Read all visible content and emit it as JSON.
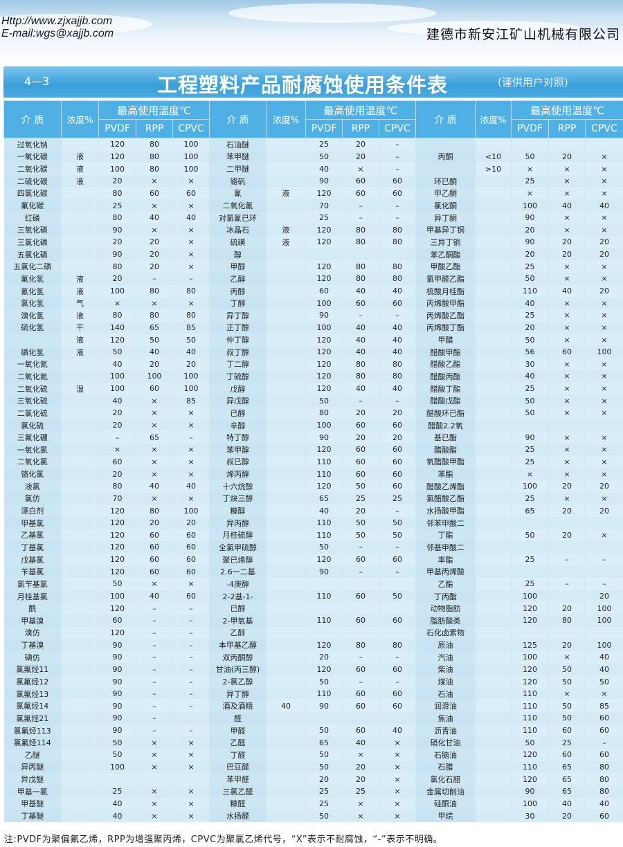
{
  "header": {
    "url": "Http://www.zjxajjb.com",
    "email": "E-mail:wgs@xajjb.com",
    "company": "建德市新安江矿山机械有限公司"
  },
  "title": {
    "number": "4—3",
    "main": "工程塑料产品耐腐蚀使用条件表",
    "sub": "(谨供用户对照)"
  },
  "columns": {
    "medium": "介 质",
    "concentration": "浓度%",
    "max_temp": "最高使用温度℃",
    "pvdf": "PVDF",
    "rpp": "RPP",
    "cpvc": "CPVC"
  },
  "rows": [
    [
      "过氧化钠",
      "",
      "120",
      "80",
      "100",
      "石油醚",
      "",
      "25",
      "20",
      "–",
      "",
      "",
      "",
      "",
      ""
    ],
    [
      "一氧化碳",
      "液",
      "120",
      "80",
      "100",
      "苯甲醚",
      "",
      "50",
      "20",
      "–",
      "丙酮",
      "<10",
      "50",
      "20",
      "×"
    ],
    [
      "二氧化碳",
      "液",
      "100",
      "80",
      "100",
      "二甲醚",
      "",
      "40",
      "×",
      "–",
      "",
      ">10",
      "×",
      "×",
      "×"
    ],
    [
      "二硫化碳",
      "液",
      "20",
      "×",
      "×",
      "铬矾",
      "",
      "90",
      "60",
      "60",
      "环已酮",
      "",
      "25",
      "×",
      "×"
    ],
    [
      "四氯化碳",
      "",
      "80",
      "60",
      "60",
      "氰",
      "液",
      "120",
      "60",
      "60",
      "甲乙酮",
      "",
      "×",
      "×",
      "×"
    ],
    [
      "氟化碳",
      "",
      "25",
      "×",
      "×",
      "二氧化氰",
      "",
      "70",
      "–",
      "–",
      "氯化酮",
      "",
      "100",
      "40",
      "40"
    ],
    [
      "红磷",
      "",
      "80",
      "40",
      "40",
      "对氯氰已环",
      "",
      "25",
      "–",
      "–",
      "异丁酮",
      "",
      "90",
      "×",
      "×"
    ],
    [
      "三氧化磷",
      "",
      "90",
      "×",
      "×",
      "冰晶石",
      "液",
      "120",
      "80",
      "80",
      "甲基异丁铜",
      "",
      "20",
      "×",
      "×"
    ],
    [
      "三氯化磷",
      "",
      "20",
      "20",
      "×",
      "硫磺",
      "液",
      "120",
      "80",
      "80",
      "三异丁铜",
      "",
      "90",
      "20",
      "20"
    ],
    [
      "五氯化磷",
      "",
      "90",
      "20",
      "×",
      "醇",
      "",
      "",
      "",
      "",
      "苯乙酮酯",
      "",
      "20",
      "20",
      "20"
    ],
    [
      "五氯化二磷",
      "",
      "80",
      "20",
      "×",
      "甲醇",
      "",
      "120",
      "80",
      "80",
      "甲酸乙酯",
      "",
      "25",
      "×",
      "×"
    ],
    [
      "氟化氢",
      "液",
      "20",
      "–",
      "–",
      "乙醇",
      "",
      "120",
      "80",
      "80",
      "氯甲醛乙酯",
      "",
      "50",
      "×",
      "×"
    ],
    [
      "氰化氢",
      "液",
      "100",
      "80",
      "80",
      "丙醇",
      "",
      "60",
      "40",
      "40",
      "梳酸月桂酯",
      "",
      "110",
      "40",
      "20"
    ],
    [
      "氯化氢",
      "气",
      "×",
      "×",
      "×",
      "丁醇",
      "",
      "100",
      "60",
      "60",
      "丙烯酸甲酯",
      "",
      "40",
      "×",
      "×"
    ],
    [
      "溴化氢",
      "液",
      "80",
      "80",
      "80",
      "异丁醇",
      "",
      "90",
      "–",
      "–",
      "丙烯酸乙酯",
      "",
      "25",
      "×",
      "×"
    ],
    [
      "硫化氢",
      "干",
      "140",
      "65",
      "85",
      "正丁醇",
      "",
      "100",
      "40",
      "40",
      "丙烯酸丁酯",
      "",
      "20",
      "×",
      "×"
    ],
    [
      "",
      "液",
      "120",
      "50",
      "50",
      "仲丁醇",
      "",
      "120",
      "40",
      "40",
      "甲醋",
      "",
      "50",
      "×",
      "×"
    ],
    [
      "磷化氢",
      "液",
      "50",
      "40",
      "40",
      "叔丁醇",
      "",
      "120",
      "40",
      "40",
      "醋酸甲酯",
      "",
      "56",
      "60",
      "100"
    ],
    [
      "一氧化氮",
      "",
      "40",
      "20",
      "20",
      "丁二醇",
      "",
      "120",
      "80",
      "80",
      "醋酸乙酯",
      "",
      "30",
      "×",
      "×"
    ],
    [
      "二氧化氮",
      "",
      "100",
      "100",
      "100",
      "丁硫醇",
      "",
      "120",
      "80",
      "80",
      "醋酸丙酯",
      "",
      "40",
      "×",
      "×"
    ],
    [
      "二氧化硫",
      "湿",
      "100",
      "60",
      "100",
      "戊醇",
      "",
      "120",
      "40",
      "40",
      "醋酸丁酯",
      "",
      "25",
      "×",
      "×"
    ],
    [
      "三氧化硫",
      "",
      "40",
      "×",
      "85",
      "异戊醇",
      "",
      "50",
      "–",
      "–",
      "醋酸戊酯",
      "",
      "50",
      "×",
      "×"
    ],
    [
      "二氯化硫",
      "",
      "20",
      "×",
      "×",
      "已醇",
      "",
      "80",
      "20",
      "20",
      "醋酸环已酯",
      "",
      "50",
      "×",
      "×"
    ],
    [
      "氯化硫",
      "",
      "20",
      "×",
      "×",
      "辛醇",
      "",
      "100",
      "60",
      "60",
      "醋酸2.2氧",
      "",
      "",
      "",
      ""
    ],
    [
      "三氟化硼",
      "",
      "–",
      "65",
      "–",
      "特丁醇",
      "",
      "90",
      "20",
      "20",
      "基已酯",
      "",
      "90",
      "×",
      "×"
    ],
    [
      "一氧化氯",
      "",
      "×",
      "×",
      "×",
      "苯甲醇",
      "",
      "120",
      "60",
      "60",
      "醋酸酯",
      "",
      "25",
      "×",
      "×"
    ],
    [
      "二氧化氯",
      "",
      "60",
      "×",
      "×",
      "叔已醇",
      "",
      "110",
      "60",
      "60",
      "氧醋酸甲酯",
      "",
      "25",
      "×",
      "×"
    ],
    [
      "铬化氯",
      "",
      "20",
      "×",
      "×",
      "烯丙醇",
      "",
      "110",
      "60",
      "60",
      "苯酯",
      "",
      "×",
      "×",
      "×"
    ],
    [
      "液氯",
      "",
      "80",
      "40",
      "40",
      "十六烷醇",
      "",
      "120",
      "50",
      "60",
      "醋酸乙烯酯",
      "",
      "100",
      "20",
      "20"
    ],
    [
      "氯仿",
      "",
      "70",
      "×",
      "×",
      "丁炔三醇",
      "",
      "65",
      "25",
      "25",
      "氯醋酸乙酯",
      "",
      "25",
      "×",
      "×"
    ],
    [
      "漂白剂",
      "",
      "120",
      "80",
      "100",
      "糠醇",
      "",
      "40",
      "20",
      "–",
      "水扬酸甲酯",
      "",
      "65",
      "20",
      "20"
    ],
    [
      "甲基氯",
      "",
      "120",
      "20",
      "20",
      "异丙醇",
      "",
      "110",
      "50",
      "50",
      "邻苯甲酸二",
      "",
      "",
      "",
      ""
    ],
    [
      "乙基氯",
      "",
      "120",
      "60",
      "60",
      "月桂硫醇",
      "",
      "110",
      "50",
      "50",
      "丁酯",
      "",
      "50",
      "20",
      "×"
    ],
    [
      "丁基氯",
      "",
      "120",
      "60",
      "60",
      "全氯甲硫醇",
      "",
      "50",
      "–",
      "–",
      "邻基甲酸二",
      "",
      "",
      "",
      ""
    ],
    [
      "戊基氯",
      "",
      "120",
      "60",
      "60",
      "聚已烯醇",
      "",
      "120",
      "60",
      "60",
      "率酯",
      "",
      "25",
      "–",
      "–"
    ],
    [
      "苄基氯",
      "",
      "120",
      "60",
      "60",
      "2.6一二基",
      "",
      "90",
      "–",
      "–",
      "甲基丙烯酸",
      "",
      "",
      "",
      ""
    ],
    [
      "氯苄基氯",
      "",
      "50",
      "×",
      "×",
      "-4庚醇",
      "",
      "",
      "",
      "",
      "乙酯",
      "",
      "25",
      "–",
      "–"
    ],
    [
      "月桂基氯",
      "",
      "100",
      "40",
      "60",
      "2-2基-1-",
      "",
      "110",
      "60",
      "50",
      "丁丙酯",
      "",
      "100",
      "",
      "20"
    ],
    [
      "酰",
      "",
      "120",
      "–",
      "–",
      "已醇",
      "",
      "",
      "",
      "",
      "动物脂肪",
      "",
      "120",
      "20",
      "100"
    ],
    [
      "甲基溴",
      "",
      "60",
      "–",
      "–",
      "2-甲氧基",
      "",
      "110",
      "60",
      "60",
      "脂肪酸类",
      "",
      "120",
      "80",
      "100"
    ],
    [
      "溴仿",
      "",
      "120",
      "–",
      "–",
      "乙醉",
      "",
      "",
      "",
      "",
      "石化卤素物",
      "",
      "",
      "",
      ""
    ],
    [
      "丁基溴",
      "",
      "90",
      "–",
      "–",
      "本甲基乙醇",
      "",
      "120",
      "80",
      "80",
      "原油",
      "",
      "125",
      "20",
      "100"
    ],
    [
      "碘仿",
      "",
      "90",
      "–",
      "–",
      "双丙酮醇",
      "",
      "20",
      "–",
      "–",
      "汽油",
      "",
      "100",
      "×",
      "40"
    ],
    [
      "氯氟烃11",
      "",
      "90",
      "–",
      "–",
      "甘油(丙三醇)",
      "",
      "120",
      "60",
      "60",
      "柴油",
      "",
      "120",
      "50",
      "40"
    ],
    [
      "氯氟烃12",
      "",
      "90",
      "–",
      "–",
      "2-氯乙醇",
      "",
      "50",
      "–",
      "–",
      "煤油",
      "",
      "120",
      "50",
      "50"
    ],
    [
      "氯氟烃13",
      "",
      "90",
      "–",
      "–",
      "异丁醇",
      "",
      "110",
      "60",
      "60",
      "石油",
      "",
      "110",
      "×",
      "×"
    ],
    [
      "氯氟烃14",
      "",
      "90",
      "–",
      "–",
      "酒及酒精",
      "40",
      "90",
      "60",
      "60",
      "润滑油",
      "",
      "110",
      "50",
      "85"
    ],
    [
      "氯氟烃21",
      "",
      "90",
      "–",
      "",
      "醛",
      "",
      "",
      "",
      "",
      "焦油",
      "",
      "110",
      "50",
      "60"
    ],
    [
      "氯氟烃113",
      "",
      "90",
      "–",
      "–",
      "甲醛",
      "",
      "50",
      "60",
      "40",
      "沥青油",
      "",
      "110",
      "60",
      "60"
    ],
    [
      "氯氟烃114",
      "",
      "50",
      "×",
      "×",
      "乙醛",
      "",
      "65",
      "40",
      "×",
      "硝化甘油",
      "",
      "50",
      "25",
      "–"
    ],
    [
      "乙醚",
      "",
      "50",
      "×",
      "×",
      "丁醛",
      "",
      "50",
      "×",
      "×",
      "石脑油",
      "",
      "120",
      "60",
      "60"
    ],
    [
      "异丙醚",
      "",
      "100",
      "×",
      "×",
      "巴豆醛",
      "",
      "50",
      "20",
      "×",
      "石腊",
      "",
      "110",
      "65",
      "80"
    ],
    [
      "异戊醚",
      "",
      "",
      "",
      "",
      "苯甲醛",
      "",
      "20",
      "20",
      "×",
      "氯化石腊",
      "",
      "120",
      "65",
      "80"
    ],
    [
      "甲基一氯",
      "",
      "25",
      "×",
      "×",
      "三氯乙醛",
      "",
      "25",
      "25",
      "×",
      "金属切削油",
      "",
      "90",
      "65",
      "80"
    ],
    [
      "甲基醚",
      "",
      "40",
      "×",
      "×",
      "糠醛",
      "",
      "25",
      "×",
      "×",
      "硅酮油",
      "",
      "100",
      "40",
      "40"
    ],
    [
      "丁基醚",
      "",
      "40",
      "×",
      "×",
      "水扬醛",
      "",
      "50",
      "×",
      "×",
      "甲烷",
      "",
      "30",
      "20",
      "60"
    ]
  ],
  "footer": "注:PVDF为聚偏氟乙烯，RPP为增强聚丙烯，CPVC为聚氯乙烯代号，“X”表示不耐腐蚀，“-”表示不明确。"
}
